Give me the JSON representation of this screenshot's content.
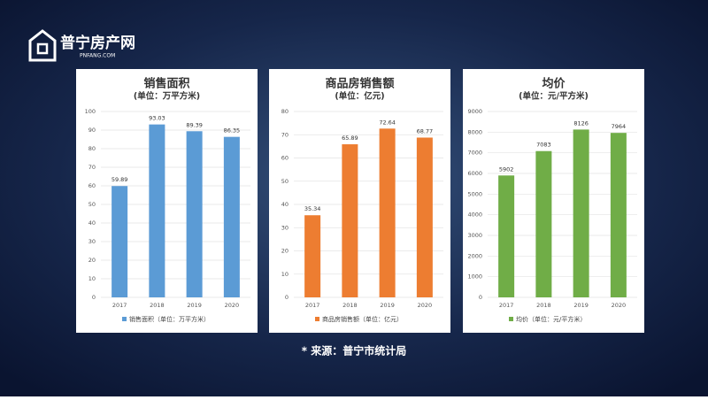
{
  "logo": {
    "name": "普宁房产网",
    "domain": "PNFANG.COM"
  },
  "source": "* 来源：普宁市统计局",
  "chart_data": [
    {
      "type": "bar",
      "title": "销售面积",
      "subtitle": "(单位：万平方米)",
      "categories": [
        "2017",
        "2018",
        "2019",
        "2020"
      ],
      "series": [
        {
          "name": "销售面积（单位：万平方米）",
          "color": "#5b9bd5",
          "values": [
            59.89,
            93.03,
            89.39,
            86.35
          ]
        }
      ],
      "ylim": [
        0,
        100
      ],
      "yticks": [
        0,
        10,
        20,
        30,
        40,
        50,
        60,
        70,
        80,
        90,
        100
      ],
      "grid": true,
      "legend": "bottom"
    },
    {
      "type": "bar",
      "title": "商品房销售额",
      "subtitle": "(单位：亿元)",
      "categories": [
        "2017",
        "2018",
        "2019",
        "2020"
      ],
      "series": [
        {
          "name": "商品房销售额（单位：亿元）",
          "color": "#ed7d31",
          "values": [
            35.34,
            65.89,
            72.64,
            68.77
          ]
        }
      ],
      "ylim": [
        0,
        80
      ],
      "yticks": [
        0,
        10,
        20,
        30,
        40,
        50,
        60,
        70,
        80
      ],
      "grid": true,
      "legend": "bottom"
    },
    {
      "type": "bar",
      "title": "均价",
      "subtitle": "(单位：元/平方米)",
      "categories": [
        "2017",
        "2018",
        "2019",
        "2020"
      ],
      "series": [
        {
          "name": "均价（单位：元/平方米）",
          "color": "#70ad47",
          "values": [
            5902,
            7083,
            8126,
            7964
          ]
        }
      ],
      "ylim": [
        0,
        9000
      ],
      "yticks": [
        0,
        1000,
        2000,
        3000,
        4000,
        5000,
        6000,
        7000,
        8000,
        9000
      ],
      "grid": true,
      "legend": "bottom"
    }
  ]
}
